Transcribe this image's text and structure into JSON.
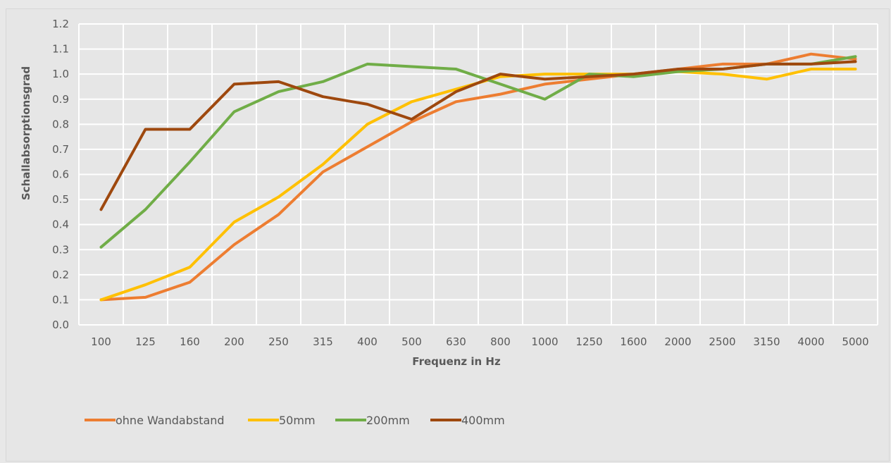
{
  "chart_data": {
    "type": "line",
    "title": "",
    "xlabel": "Frequenz in Hz",
    "ylabel": "Schallabsorptionsgrad",
    "categories": [
      "100",
      "125",
      "160",
      "200",
      "250",
      "315",
      "400",
      "500",
      "630",
      "800",
      "1000",
      "1250",
      "1600",
      "2000",
      "2500",
      "3150",
      "4000",
      "5000"
    ],
    "ylim": [
      0,
      1.2
    ],
    "yticks": [
      "0.0",
      "0.1",
      "0.2",
      "0.3",
      "0.4",
      "0.5",
      "0.6",
      "0.7",
      "0.8",
      "0.9",
      "1.0",
      "1.1",
      "1.2"
    ],
    "grid": true,
    "legend_position": "bottom-left",
    "series": [
      {
        "name": "ohne Wandabstand",
        "color": "#ed7d31",
        "values": [
          0.1,
          0.11,
          0.17,
          0.32,
          0.44,
          0.61,
          0.71,
          0.81,
          0.89,
          0.92,
          0.96,
          0.98,
          1.0,
          1.02,
          1.04,
          1.04,
          1.08,
          1.06
        ]
      },
      {
        "name": "50mm",
        "color": "#ffc000",
        "values": [
          0.1,
          0.16,
          0.23,
          0.41,
          0.51,
          0.64,
          0.8,
          0.89,
          0.94,
          0.99,
          1.0,
          1.0,
          1.0,
          1.01,
          1.0,
          0.98,
          1.02,
          1.02
        ]
      },
      {
        "name": "200mm",
        "color": "#70ad47",
        "values": [
          0.31,
          0.46,
          0.65,
          0.85,
          0.93,
          0.97,
          1.04,
          1.03,
          1.02,
          0.96,
          0.9,
          1.0,
          0.99,
          1.01,
          1.02,
          1.04,
          1.04,
          1.07
        ]
      },
      {
        "name": "400mm",
        "color": "#9e480e",
        "values": [
          0.46,
          0.78,
          0.78,
          0.96,
          0.97,
          0.91,
          0.88,
          0.82,
          0.93,
          1.0,
          0.98,
          0.99,
          1.0,
          1.02,
          1.02,
          1.04,
          1.04,
          1.05
        ]
      }
    ]
  }
}
